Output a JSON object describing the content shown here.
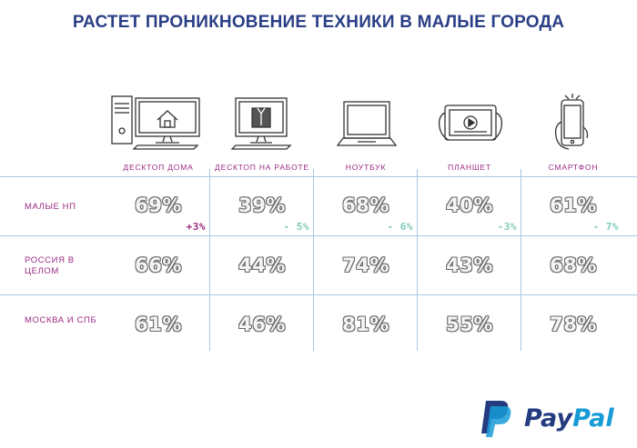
{
  "title": "РАСТЕТ ПРОНИКНОВЕНИЕ ТЕХНИКИ В МАЛЫЕ ГОРОДА",
  "colors": {
    "title": "#2a3f86",
    "labels": "#9b2a83",
    "positive_delta": "#9b2a83",
    "negative_delta": "#7fcab8",
    "grid": "#a9c6e4"
  },
  "icons": [
    "desktop-home-icon",
    "desktop-work-icon",
    "laptop-icon",
    "tablet-icon",
    "smartphone-icon"
  ],
  "logo": {
    "pay": "Pay",
    "pal": "Pal"
  },
  "chart_data": {
    "type": "table",
    "columns": [
      "ДЕСКТОП ДОМА",
      "ДЕСКТОП НА РАБОТЕ",
      "НОУТБУК",
      "ПЛАНШЕТ",
      "СМАРТФОН"
    ],
    "rows": [
      {
        "label": "МАЛЫЕ НП",
        "values": [
          "69%",
          "39%",
          "68%",
          "40%",
          "61%"
        ],
        "deltas": [
          "+3%",
          "- 5%",
          "- 6%",
          "-3%",
          "- 7%"
        ]
      },
      {
        "label": "РОССИЯ В ЦЕЛОМ",
        "values": [
          "66%",
          "44%",
          "74%",
          "43%",
          "68%"
        ]
      },
      {
        "label": "МОСКВА И СПБ",
        "values": [
          "61%",
          "46%",
          "81%",
          "55%",
          "78%"
        ]
      }
    ]
  }
}
